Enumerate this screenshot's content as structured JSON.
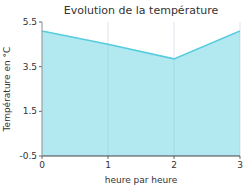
{
  "chart_data": {
    "type": "area",
    "title": "Evolution de la température",
    "xlabel": "heure par heure",
    "ylabel": "Température en °C",
    "x": [
      0,
      1,
      2,
      3
    ],
    "values": [
      5.1,
      4.5,
      3.85,
      5.1
    ],
    "xlim": [
      0,
      3
    ],
    "ylim": [
      -0.5,
      5.5
    ],
    "xticks": [
      0,
      1,
      2,
      3
    ],
    "yticks": [
      -0.5,
      1.5,
      3.5,
      5.5
    ],
    "color": "#55ccdd",
    "grid": "x"
  }
}
